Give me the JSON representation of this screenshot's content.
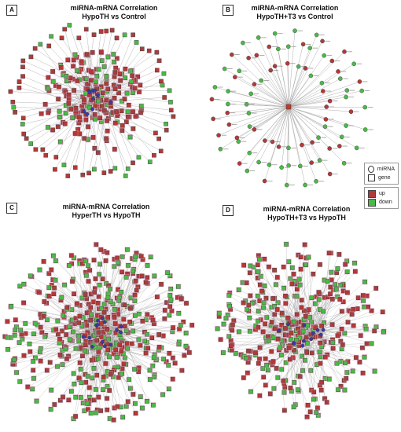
{
  "panels": [
    {
      "letter": "A",
      "title_line1": "miRNA-mRNA Correlation",
      "title_line2": "HypoTH vs Control",
      "layout": "dense-with-ring",
      "up_ratio": 0.72
    },
    {
      "letter": "B",
      "title_line1": "miRNA-mRNA Correlation",
      "title_line2": "HypoTH+T3 vs Control",
      "layout": "star",
      "up_ratio": 0.45
    },
    {
      "letter": "C",
      "title_line1": "miRNA-mRNA Correlation",
      "title_line2": "HyperTH vs HypoTH",
      "layout": "dense",
      "up_ratio": 0.5
    },
    {
      "letter": "D",
      "title_line1": "miRNA-mRNA Correlation",
      "title_line2": "HypoTH+T3 vs HypoTH",
      "layout": "dense",
      "up_ratio": 0.55
    }
  ],
  "legend_shape": {
    "items": [
      {
        "label": "miRNA",
        "shape": "circle"
      },
      {
        "label": "gene",
        "shape": "square"
      }
    ]
  },
  "legend_color": {
    "items": [
      {
        "label": "up",
        "color": "#b03a3a"
      },
      {
        "label": "down",
        "color": "#4cb848"
      }
    ]
  },
  "colors": {
    "up": "#b03a3a",
    "down": "#4cb848",
    "mirna": "#3a3aa8",
    "edge": "#9a9a9a",
    "halo": "#f3b6d0",
    "hub": "#c0392b"
  }
}
